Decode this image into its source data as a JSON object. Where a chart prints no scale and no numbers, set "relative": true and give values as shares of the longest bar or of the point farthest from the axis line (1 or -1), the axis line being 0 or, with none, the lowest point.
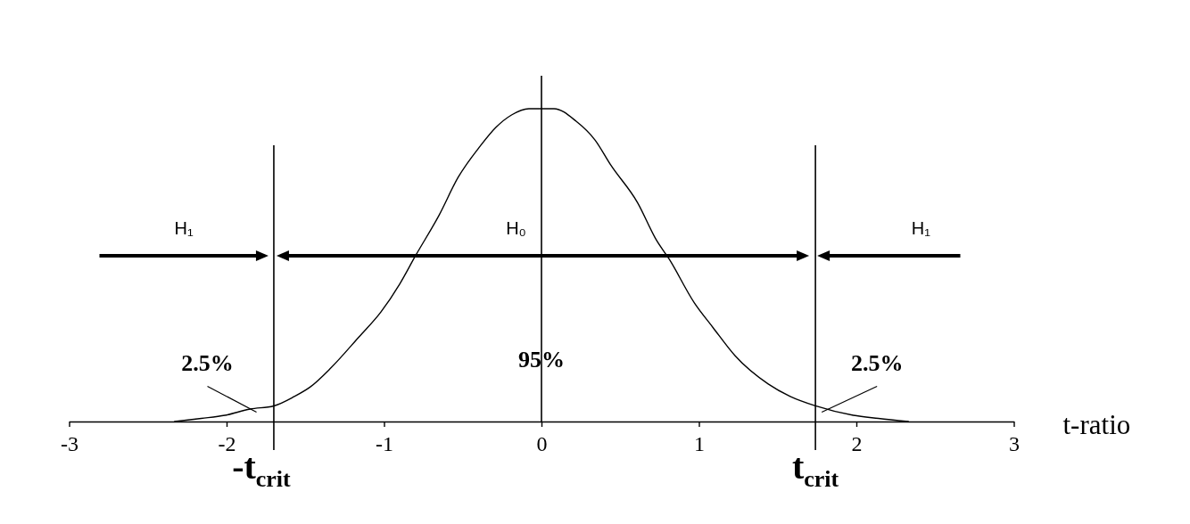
{
  "chart_data": {
    "type": "line",
    "relative": true,
    "xlabel": "t-ratio",
    "xlim": [
      -3,
      3
    ],
    "xticks": [
      -3,
      -2,
      -1,
      0,
      1,
      2,
      3
    ],
    "x": [
      -2.33,
      -2.16,
      -2.01,
      -1.85,
      -1.7,
      -1.57,
      -1.47,
      -1.34,
      -1.16,
      -1.02,
      -0.9,
      -0.8,
      -0.65,
      -0.53,
      -0.39,
      -0.29,
      -0.19,
      -0.08,
      0,
      0.08,
      0.22,
      0.34,
      0.44,
      0.61,
      0.73,
      0.81,
      0.97,
      1.09,
      1.23,
      1.44,
      1.58,
      1.74,
      1.98,
      2.14,
      2.33
    ],
    "series": [
      {
        "color": "#000000",
        "values": [
          0,
          0.01,
          0.02,
          0.04,
          0.05,
          0.08,
          0.11,
          0.17,
          0.27,
          0.35,
          0.44,
          0.53,
          0.66,
          0.78,
          0.88,
          0.94,
          0.98,
          1,
          1,
          1,
          0.96,
          0.9,
          0.82,
          0.7,
          0.58,
          0.52,
          0.38,
          0.3,
          0.21,
          0.12,
          0.08,
          0.05,
          0.02,
          0.01,
          0
        ]
      }
    ],
    "ref_lines": [
      {
        "axis": "x",
        "value": 0
      },
      {
        "axis": "x",
        "value": -1.7,
        "label": "-t$_{crit}$"
      },
      {
        "axis": "x",
        "value": 1.74,
        "label": "t$_{crit}$"
      }
    ],
    "annotations": [
      "H₁",
      "H₀",
      "H₁",
      {
        "text": "2.5%",
        "x": -1.81,
        "y": 0.03
      },
      {
        "text": "95%",
        "x": 0,
        "y": 0.2
      },
      {
        "text": "2.5%",
        "x": 1.78,
        "y": 0.03
      }
    ]
  }
}
